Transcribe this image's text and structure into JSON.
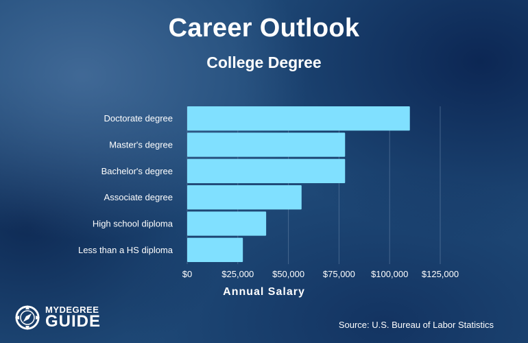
{
  "title": "Career Outlook",
  "subtitle": "College Degree",
  "source": "Source: U.S. Bureau of Labor Statistics",
  "logo": {
    "line1": "MYDEGREE",
    "line2": "GUIDE"
  },
  "colors": {
    "bar": "#80e0ff",
    "text": "#ffffff",
    "grid": "#6a88ab"
  },
  "chart_data": {
    "type": "bar",
    "orientation": "horizontal",
    "categories": [
      "Doctorate degree",
      "Master's degree",
      "Bachelor's degree",
      "Associate degree",
      "High school diploma",
      "Less than a HS diploma"
    ],
    "values": [
      110000,
      78000,
      78000,
      56500,
      39000,
      27500
    ],
    "xlabel": "Annual Salary",
    "xlim": [
      0,
      125000
    ],
    "xticks": [
      0,
      25000,
      50000,
      75000,
      100000,
      125000
    ],
    "xtick_labels": [
      "$0",
      "$25,000",
      "$50,000",
      "$75,000",
      "$100,000",
      "$125,000"
    ],
    "grid": "vertical"
  }
}
